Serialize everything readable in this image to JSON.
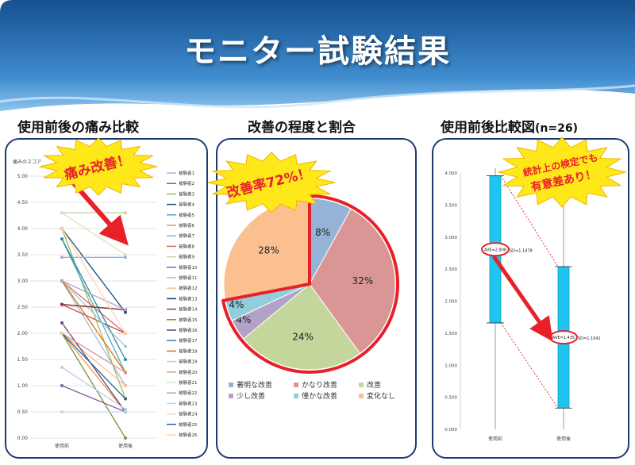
{
  "title": "モニター試験結果",
  "panel1": {
    "heading": "使用前後の痛み比較",
    "callout": "痛み改善！"
  },
  "panel2": {
    "heading": "改善の程度と割合",
    "callout": "改善率72%！"
  },
  "panel3": {
    "heading": "使用前後比較図",
    "heading_suffix": "(n=26)",
    "callout_line1": "統計上の検定でも",
    "callout_line2": "有意差あり！"
  },
  "colors": {
    "banner_top": "#1a5a9c",
    "banner_bottom": "#4a9ad8",
    "panel_border": "#1f3b73",
    "arrow": "#e8202a",
    "burst": "#ffe81a",
    "bar": "#1ec6ef"
  },
  "chart_data": [
    {
      "type": "line",
      "title": "",
      "ylabel": "痛みのスコア",
      "categories": [
        "使用前",
        "使用後"
      ],
      "ylim": [
        0,
        5
      ],
      "yticks": [
        "0.00",
        "0.50",
        "1.00",
        "1.50",
        "2.00",
        "2.50",
        "3.00",
        "3.50",
        "4.00",
        "4.50",
        "5.00"
      ],
      "series": [
        {
          "name": "被験者1",
          "color": "#9bbbe0",
          "values": [
            3.0,
            1.0
          ]
        },
        {
          "name": "被験者2",
          "color": "#c0504d",
          "values": [
            2.55,
            2.0
          ]
        },
        {
          "name": "被験者3",
          "color": "#9bbb59",
          "values": [
            4.0,
            0.75
          ]
        },
        {
          "name": "被験者4",
          "color": "#1f4e79",
          "values": [
            4.0,
            2.4
          ]
        },
        {
          "name": "被験者5",
          "color": "#4bacc6",
          "values": [
            3.8,
            1.25
          ]
        },
        {
          "name": "被験者6",
          "color": "#f79646",
          "values": [
            2.0,
            0.5
          ]
        },
        {
          "name": "被験者7",
          "color": "#95b3d7",
          "values": [
            3.45,
            3.45
          ]
        },
        {
          "name": "被験者8",
          "color": "#e06666",
          "values": [
            3.0,
            2.0
          ]
        },
        {
          "name": "被験者9",
          "color": "#c3d69b",
          "values": [
            4.3,
            4.3
          ]
        },
        {
          "name": "被験者10",
          "color": "#8064a2",
          "values": [
            1.0,
            0.5
          ]
        },
        {
          "name": "被験者11",
          "color": "#92cddc",
          "values": [
            3.0,
            1.75
          ]
        },
        {
          "name": "被験者12",
          "color": "#fac090",
          "values": [
            2.0,
            1.0
          ]
        },
        {
          "name": "被験者13",
          "color": "#17375e",
          "values": [
            2.55,
            2.45
          ]
        },
        {
          "name": "被験者14",
          "color": "#953735",
          "values": [
            2.55,
            2.45
          ]
        },
        {
          "name": "被験者15",
          "color": "#77933c",
          "values": [
            2.0,
            0.0
          ]
        },
        {
          "name": "被験者16",
          "color": "#5f497a",
          "values": [
            2.2,
            0.5
          ]
        },
        {
          "name": "被験者17",
          "color": "#31859c",
          "values": [
            3.8,
            1.5
          ]
        },
        {
          "name": "被験者18",
          "color": "#e46c0a",
          "values": [
            3.0,
            1.25
          ]
        },
        {
          "name": "被験者19",
          "color": "#b9cde5",
          "values": [
            1.35,
            0.55
          ]
        },
        {
          "name": "被験者20",
          "color": "#d99694",
          "values": [
            2.0,
            1.25
          ]
        },
        {
          "name": "被験者21",
          "color": "#d7e4bd",
          "values": [
            4.3,
            3.5
          ]
        },
        {
          "name": "被験者22",
          "color": "#b3a2c7",
          "values": [
            3.0,
            2.45
          ]
        },
        {
          "name": "被験者23",
          "color": "#b7dee8",
          "values": [
            0.5,
            0.5
          ]
        },
        {
          "name": "被験者24",
          "color": "#fcd5b5",
          "values": [
            4.0,
            2.0
          ]
        },
        {
          "name": "被験者25",
          "color": "#366092",
          "values": [
            2.0,
            0.75
          ]
        },
        {
          "name": "被験者26",
          "color": "#fbd4b4",
          "values": [
            2.0,
            2.0
          ]
        }
      ]
    },
    {
      "type": "pie",
      "title": "",
      "slices": [
        {
          "label": "著明な改善",
          "value": 8,
          "display": "8%",
          "color": "#95b3d7"
        },
        {
          "label": "かなり改善",
          "value": 32,
          "display": "32%",
          "color": "#d99694"
        },
        {
          "label": "改善",
          "value": 24,
          "display": "24%",
          "color": "#c3d69b"
        },
        {
          "label": "少し改善",
          "value": 4,
          "display": "4%",
          "color": "#b3a2c7"
        },
        {
          "label": "僅かな改善",
          "value": 4,
          "display": "4%",
          "color": "#92cddc"
        },
        {
          "label": "変化なし",
          "value": 28,
          "display": "28%",
          "color": "#fac090"
        }
      ],
      "legend_position": "bottom"
    },
    {
      "type": "bar",
      "title": "",
      "categories": [
        "使用前",
        "使用後"
      ],
      "ylim": [
        0,
        4
      ],
      "yticks": [
        "0.000",
        "0.500",
        "1.000",
        "1.500",
        "2.000",
        "2.500",
        "3.000",
        "3.500",
        "4.000"
      ],
      "means": [
        2.808,
        1.435
      ],
      "sd": [
        1.1478,
        1.1041
      ],
      "mean_labels": [
        "AVE=2.808",
        "AVE=1.435"
      ],
      "sd_labels": [
        "SD=1.1478",
        "SD=1.1041"
      ]
    }
  ]
}
